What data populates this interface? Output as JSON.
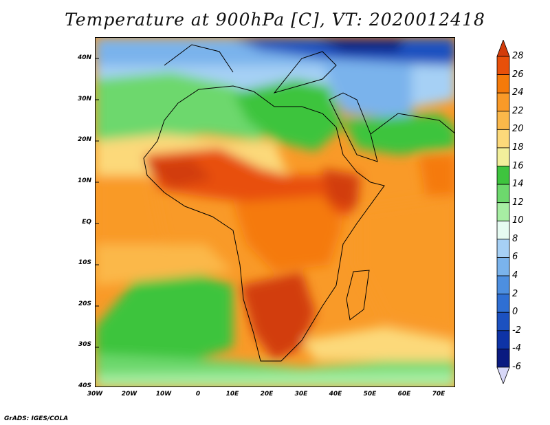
{
  "title": "Temperature at 900hPa [C], VT: 2020012418",
  "credit": "GrADS: IGES/COLA",
  "lat_labels": [
    "40N",
    "30N",
    "20N",
    "10N",
    "EQ",
    "10S",
    "20S",
    "30S",
    "40S"
  ],
  "lon_labels": [
    "30W",
    "20W",
    "10W",
    "0",
    "10E",
    "20E",
    "30E",
    "40E",
    "50E",
    "60E",
    "70E"
  ],
  "colorbar": {
    "levels": [
      "28",
      "26",
      "24",
      "22",
      "20",
      "18",
      "16",
      "14",
      "12",
      "10",
      "8",
      "6",
      "4",
      "2",
      "0",
      "-2",
      "-4",
      "-6"
    ],
    "colors": [
      "#d23c0a",
      "#e8500a",
      "#f57a0a",
      "#f99a28",
      "#fbb84a",
      "#fcd97a",
      "#f2ef9b",
      "#3ec43e",
      "#6dd86d",
      "#a7eea3",
      "#e6fbf2",
      "#a6d0f5",
      "#7ab3ec",
      "#4d8fe0",
      "#2f6fd3",
      "#1c51c0",
      "#0e33a6",
      "#0a1a80",
      "#d8d8f8"
    ]
  },
  "map": {
    "region": "Africa and surrounding oceans",
    "lon_range": [
      -30,
      75
    ],
    "lat_range": [
      -40,
      45
    ]
  }
}
